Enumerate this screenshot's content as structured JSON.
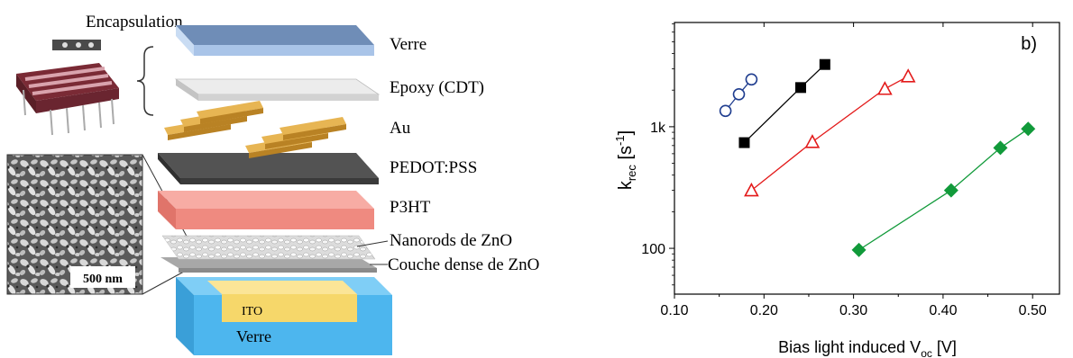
{
  "diagram": {
    "encapsulation_label": "Encapsulation",
    "layers": {
      "glass_top": "Verre",
      "epoxy": "Epoxy (CDT)",
      "au": "Au",
      "pedot": "PEDOT:PSS",
      "p3ht": "P3HT",
      "nanorods": "Nanorods de ZnO",
      "dense_zno": "Couche dense de ZnO",
      "ito": "ITO",
      "glass_bottom": "Verre"
    },
    "sem_scale_bar": "500 nm",
    "colors": {
      "glass": "#bcd3f0",
      "epoxy": "#e9e9e9",
      "au": "#e0a33a",
      "pedot": "#505050",
      "p3ht": "#f08a80",
      "ito": "#f6d76a",
      "glass_bottom": "#4db6ee"
    }
  },
  "chart_data": {
    "type": "scatter",
    "panel_label": "b)",
    "xlabel": "Bias light induced V",
    "xlabel_sub": "oc",
    "xlabel_unit": " [V]",
    "ylabel": "k",
    "ylabel_sub": "rec",
    "ylabel_unit_main": " [s",
    "ylabel_unit_sup": "-1",
    "ylabel_unit_end": "]",
    "xlim": [
      0.1,
      0.53
    ],
    "ylim": [
      42,
      7200
    ],
    "yscale": "log",
    "x_ticks": [
      "0.10",
      "0.20",
      "0.30",
      "0.40",
      "0.50"
    ],
    "y_ticks": [
      "100",
      "1k"
    ],
    "series": [
      {
        "marker": "circle-open",
        "color": "#1f3d8f",
        "points": [
          [
            0.157,
            1350
          ],
          [
            0.172,
            1850
          ],
          [
            0.186,
            2450
          ]
        ]
      },
      {
        "marker": "square-filled",
        "color": "#000000",
        "points": [
          [
            0.178,
            740
          ],
          [
            0.241,
            2100
          ],
          [
            0.268,
            3250
          ]
        ]
      },
      {
        "marker": "triangle-open",
        "color": "#e31a1a",
        "points": [
          [
            0.186,
            300
          ],
          [
            0.254,
            750
          ],
          [
            0.335,
            2050
          ],
          [
            0.361,
            2600
          ]
        ]
      },
      {
        "marker": "diamond-filled",
        "color": "#119a3a",
        "points": [
          [
            0.306,
            97
          ],
          [
            0.409,
            300
          ],
          [
            0.464,
            670
          ],
          [
            0.495,
            960
          ]
        ]
      }
    ]
  }
}
